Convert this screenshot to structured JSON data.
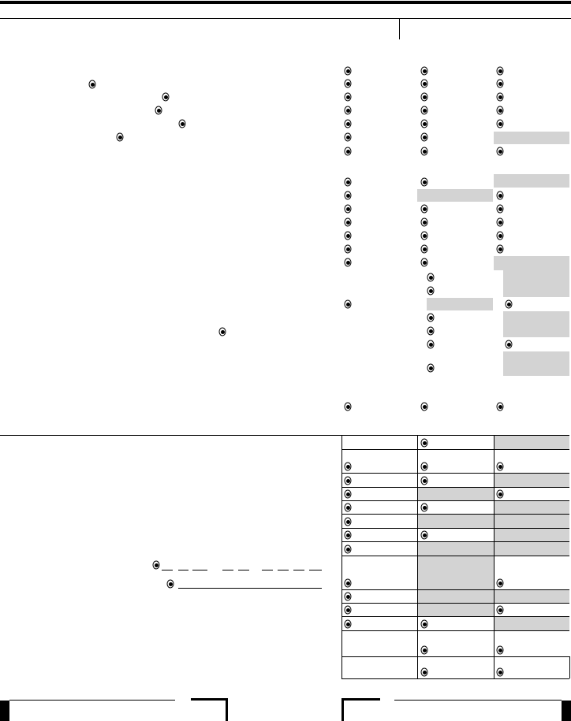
{
  "form": {
    "radio_state": "selected",
    "shaded_cell_color": "#d3d3d3",
    "rule_color": "#000000"
  }
}
